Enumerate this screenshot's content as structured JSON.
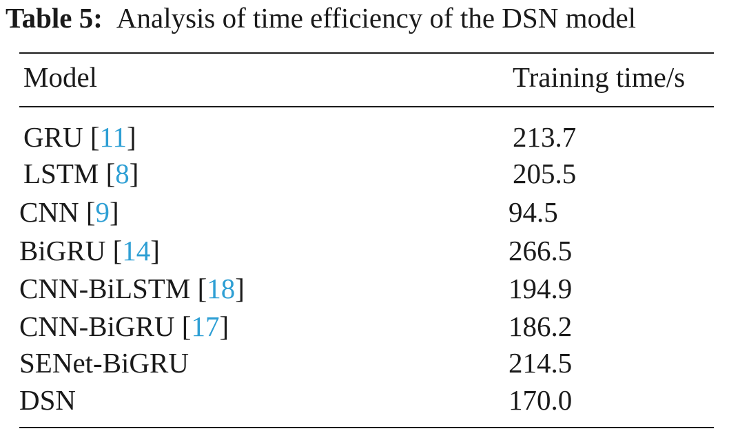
{
  "caption": {
    "label": "Table 5:",
    "text": "Analysis of time efficiency of the DSN model"
  },
  "table": {
    "headers": {
      "model": "Model",
      "time": "Training time/s"
    },
    "rows": [
      {
        "model": "GRU",
        "cite": "11",
        "time": "213.7"
      },
      {
        "model": "LSTM",
        "cite": "8",
        "time": "205.5"
      },
      {
        "model": "CNN",
        "cite": "9",
        "time": "94.5"
      },
      {
        "model": "BiGRU",
        "cite": "14",
        "time": "266.5"
      },
      {
        "model": "CNN-BiLSTM",
        "cite": "18",
        "time": "194.9"
      },
      {
        "model": "CNN-BiGRU",
        "cite": "17",
        "time": "186.2"
      },
      {
        "model": "SENet-BiGRU",
        "cite": "",
        "time": "214.5"
      },
      {
        "model": "DSN",
        "cite": "",
        "time": "170.0"
      }
    ]
  }
}
